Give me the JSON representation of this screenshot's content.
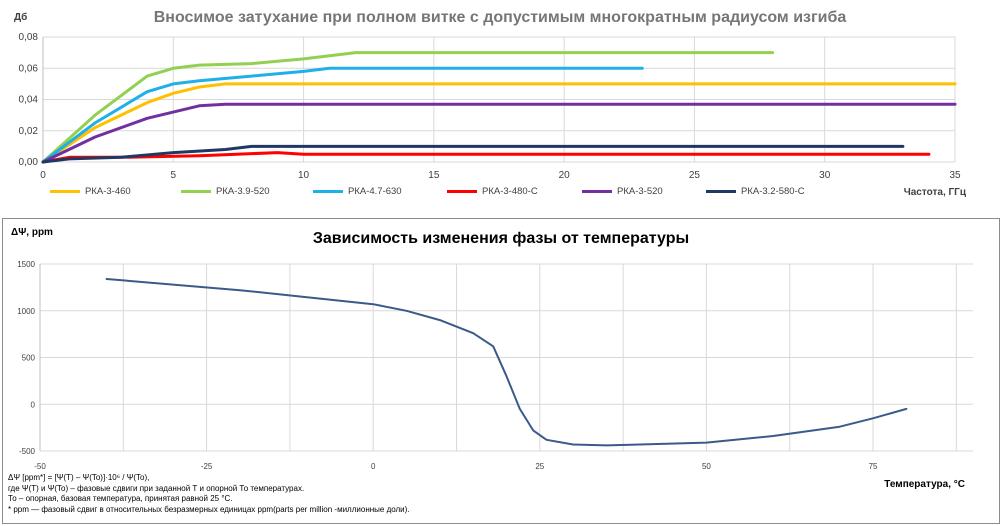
{
  "chart_data": [
    {
      "type": "line",
      "title": "Вносимое затухание при полном витке с допустимым многократным радиусом изгиба",
      "ylabel": "Дб",
      "xlabel": "Частота,  ГГц",
      "xlim": [
        0,
        35
      ],
      "ylim": [
        0,
        0.08
      ],
      "xticks": [
        "0",
        "5",
        "10",
        "15",
        "20",
        "25",
        "30",
        "35"
      ],
      "yticks": [
        "0,00",
        "0,02",
        "0,04",
        "0,06",
        "0,08"
      ],
      "grid": true,
      "legend_position": "bottom",
      "series": [
        {
          "name": "РКА-3-460",
          "color": "#FFC000",
          "x": [
            0,
            2,
            4,
            5,
            6,
            7,
            8,
            35
          ],
          "y": [
            0,
            0.022,
            0.038,
            0.044,
            0.048,
            0.05,
            0.05,
            0.05
          ]
        },
        {
          "name": "РКА-3.9-520",
          "color": "#92D050",
          "x": [
            0,
            2,
            4,
            5,
            6,
            8,
            10,
            12,
            28
          ],
          "y": [
            0,
            0.03,
            0.055,
            0.06,
            0.062,
            0.063,
            0.066,
            0.07,
            0.07
          ]
        },
        {
          "name": "РКА-4.7-630",
          "color": "#1FB0E8",
          "x": [
            0,
            2,
            4,
            5,
            6,
            8,
            10,
            11,
            23
          ],
          "y": [
            0,
            0.025,
            0.045,
            0.05,
            0.052,
            0.055,
            0.058,
            0.06,
            0.06
          ]
        },
        {
          "name": "РКА-3-480-С",
          "color": "#FF0000",
          "x": [
            0,
            1,
            3,
            6,
            9,
            10,
            34
          ],
          "y": [
            0,
            0.003,
            0.003,
            0.004,
            0.006,
            0.005,
            0.005
          ]
        },
        {
          "name": "РКА-3-520",
          "color": "#7030A0",
          "x": [
            0,
            2,
            4,
            6,
            7,
            8,
            35
          ],
          "y": [
            0,
            0.016,
            0.028,
            0.036,
            0.037,
            0.037,
            0.037
          ]
        },
        {
          "name": "РКА-3.2-580-С",
          "color": "#1F3864",
          "x": [
            0,
            1,
            3,
            5,
            7,
            8,
            33
          ],
          "y": [
            0,
            0.002,
            0.003,
            0.006,
            0.008,
            0.01,
            0.01
          ]
        }
      ]
    },
    {
      "type": "line",
      "title": "Зависимость изменения фазы от температуры",
      "ylabel": "ΔΨ, ppm",
      "xlabel": "Температура, °С",
      "xlim": [
        -50,
        90
      ],
      "ylim": [
        -500,
        1500
      ],
      "xticks": [
        "-50",
        "-25",
        "0",
        "25",
        "50",
        "75"
      ],
      "yticks": [
        "1500",
        "1000",
        "500",
        "0",
        "-500"
      ],
      "grid": true,
      "series": [
        {
          "name": "",
          "color": "#3A5A8A",
          "x": [
            -40,
            -20,
            0,
            5,
            10,
            15,
            18,
            20,
            22,
            24,
            26,
            30,
            35,
            40,
            50,
            60,
            70,
            75,
            80
          ],
          "y": [
            1340,
            1220,
            1070,
            1000,
            900,
            760,
            620,
            300,
            -50,
            -280,
            -380,
            -430,
            -440,
            -430,
            -410,
            -340,
            -240,
            -150,
            -50
          ]
        }
      ]
    }
  ],
  "notes": [
    "ΔΨ [ppm*] = [Ψ(T) – Ψ(To)]·10⁶ / Ψ(To),",
    "где Ψ(T) и Ψ(To) – фазовые сдвиги  при заданной Т и опорной То температурах.",
    "То – опорная, базовая температура, принятая равной 25 °С.",
    "* ppm — фазовый сдвиг в относительных безразмерных единицах ppm(parts per million -миллионные доли)."
  ]
}
